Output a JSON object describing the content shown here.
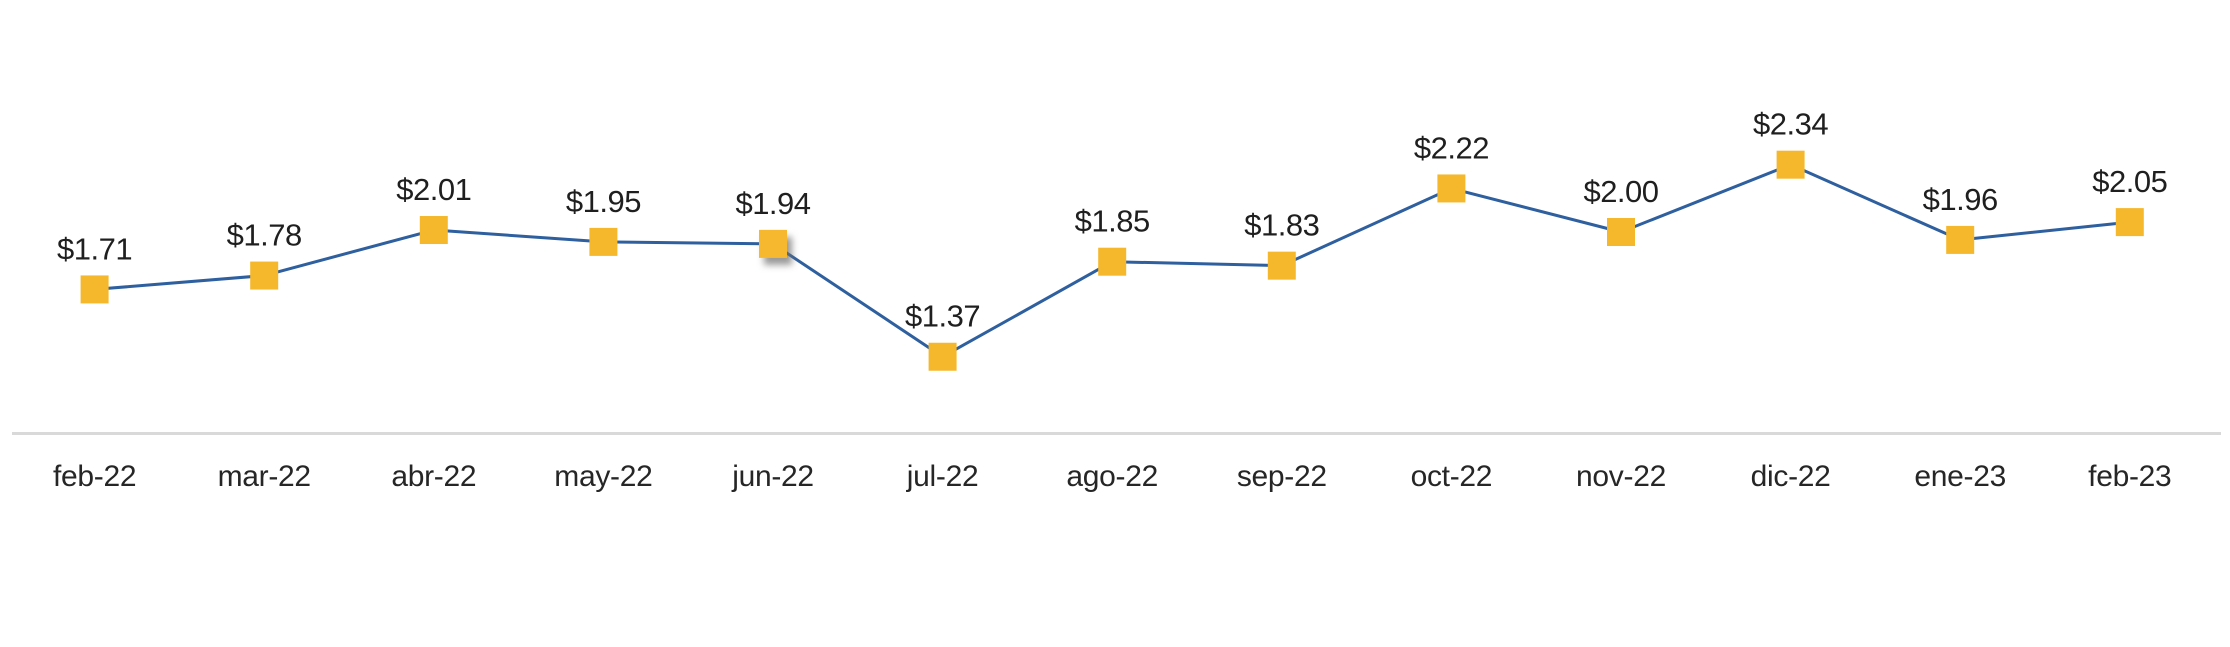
{
  "chart": {
    "background_color": "#FFFFFF"
  },
  "chart_data": {
    "type": "line",
    "title": "",
    "xlabel": "",
    "ylabel": "",
    "categories": [
      "feb-22",
      "mar-22",
      "abr-22",
      "may-22",
      "jun-22",
      "jul-22",
      "ago-22",
      "sep-22",
      "oct-22",
      "nov-22",
      "dic-22",
      "ene-23",
      "feb-23"
    ],
    "values": [
      1.71,
      1.78,
      2.01,
      1.95,
      1.94,
      1.37,
      1.85,
      1.83,
      2.22,
      2.0,
      2.34,
      1.96,
      2.05
    ],
    "data_labels": [
      "$1.71",
      "$1.78",
      "$2.01",
      "$1.95",
      "$1.94",
      "$1.37",
      "$1.85",
      "$1.83",
      "$2.22",
      "$2.00",
      "$2.34",
      "$1.96",
      "$2.05"
    ],
    "ylim": [
      1.0,
      2.5
    ],
    "grid": false,
    "legend": false,
    "marker_shape": "square",
    "highlighted_category": "jun-22",
    "highlight_effect": "drop-shadow",
    "line_color": "#2E5F9E",
    "marker_color": "#F5B82D",
    "axis_line_color": "#D9D9D9",
    "data_label_color": "#1F1F1F",
    "axis_label_color": "#262626"
  }
}
